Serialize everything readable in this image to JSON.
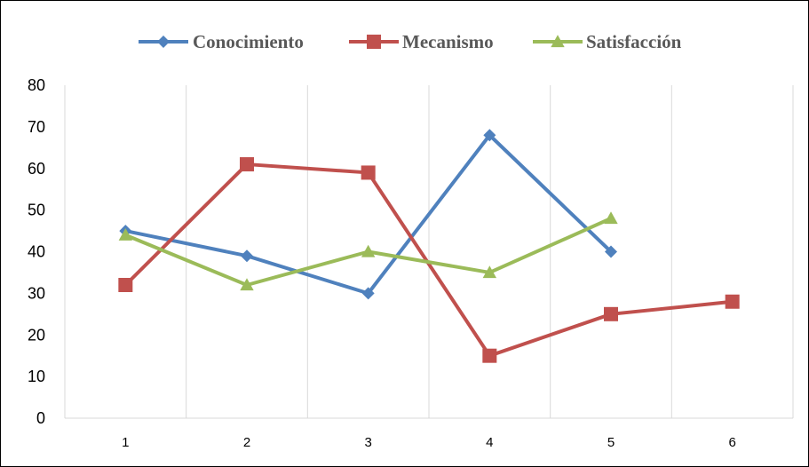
{
  "chart_data": {
    "type": "line",
    "x": [
      1,
      2,
      3,
      4,
      5,
      6
    ],
    "ylim": [
      0,
      80
    ],
    "yticks": [
      0,
      10,
      20,
      30,
      40,
      50,
      60,
      70,
      80
    ],
    "grid": "vertical",
    "legend_position": "top",
    "series": [
      {
        "name": "Conocimiento",
        "color": "#4F81BD",
        "marker": "diamond",
        "values": [
          45,
          39,
          30,
          68,
          40,
          null
        ]
      },
      {
        "name": "Mecanismo",
        "color": "#C0504D",
        "marker": "square",
        "values": [
          32,
          61,
          59,
          15,
          25,
          28
        ]
      },
      {
        "name": "Satisfacción",
        "color": "#9BBB59",
        "marker": "triangle",
        "values": [
          44,
          32,
          40,
          35,
          48,
          null
        ]
      }
    ]
  }
}
